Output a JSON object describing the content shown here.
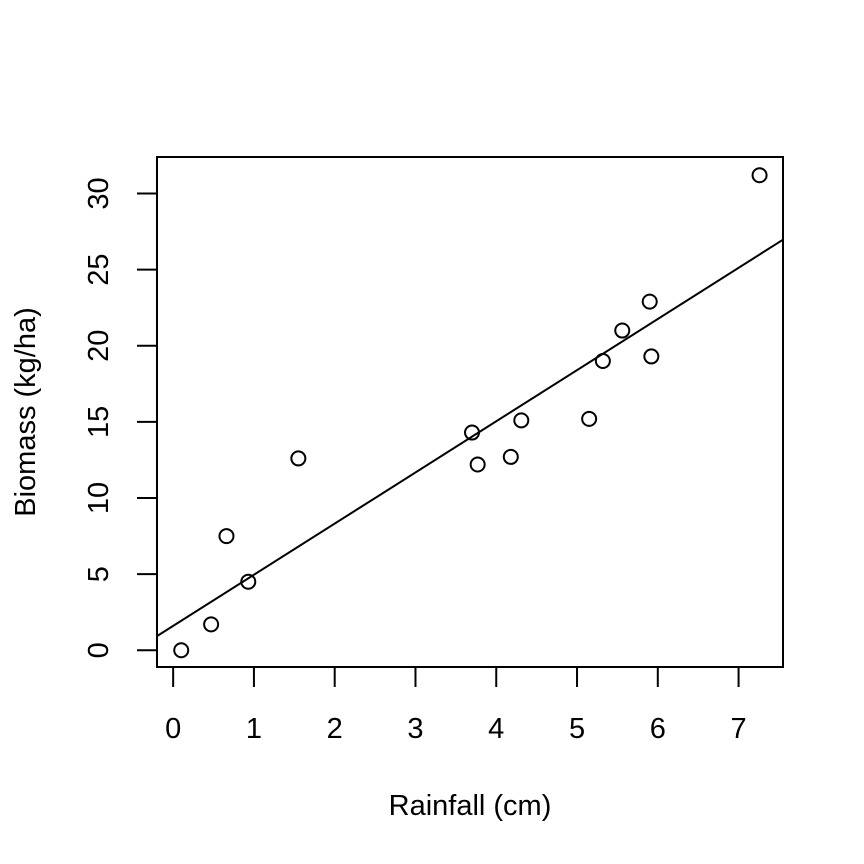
{
  "chart_data": {
    "type": "scatter",
    "title": "",
    "xlabel": "Rainfall (cm)",
    "ylabel": "Biomass (kg/ha)",
    "xlim": [
      -0.2,
      7.55
    ],
    "ylim": [
      -1.1,
      32.4
    ],
    "x_ticks": [
      0,
      1,
      2,
      3,
      4,
      5,
      6,
      7
    ],
    "y_ticks": [
      0,
      5,
      10,
      15,
      20,
      25,
      30
    ],
    "grid": false,
    "legend": "none",
    "points": [
      {
        "x": 0.1,
        "y": 0.0
      },
      {
        "x": 0.47,
        "y": 1.7
      },
      {
        "x": 0.66,
        "y": 7.5
      },
      {
        "x": 0.93,
        "y": 4.5
      },
      {
        "x": 1.55,
        "y": 12.6
      },
      {
        "x": 3.7,
        "y": 14.3
      },
      {
        "x": 3.77,
        "y": 12.2
      },
      {
        "x": 4.18,
        "y": 12.7
      },
      {
        "x": 4.31,
        "y": 15.1
      },
      {
        "x": 5.15,
        "y": 15.2
      },
      {
        "x": 5.32,
        "y": 19.0
      },
      {
        "x": 5.56,
        "y": 21.0
      },
      {
        "x": 5.9,
        "y": 22.9
      },
      {
        "x": 5.92,
        "y": 19.3
      },
      {
        "x": 7.26,
        "y": 31.2
      }
    ],
    "regression_line": {
      "intercept": 1.6,
      "slope": 3.36
    },
    "colors": {
      "points": "#000000",
      "line": "#000000",
      "background": "#ffffff"
    }
  }
}
